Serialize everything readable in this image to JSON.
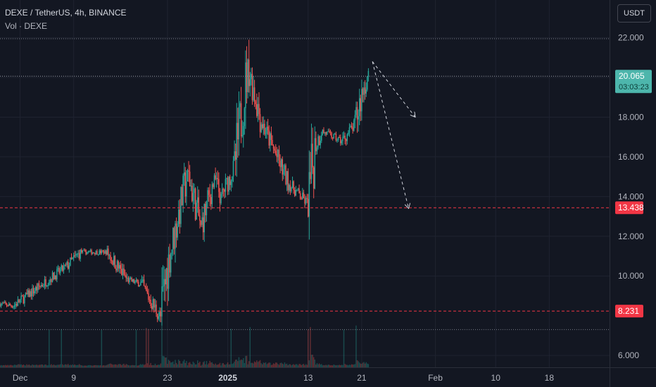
{
  "header": {
    "symbol": "DEXE / TetherUS, 4h, BINANCE",
    "indicator": "Vol · DEXE",
    "currency_button": "USDT"
  },
  "colors": {
    "background": "#131722",
    "up": "#26a69a",
    "down": "#ef5350",
    "price_tag": "#4db6ac",
    "level_line": "#f23645",
    "grid": "#1f2330",
    "arrow": "#d1d4dc"
  },
  "chart_data": {
    "type": "candlestick",
    "y_axis": {
      "ticks": [
        "22.000",
        "20.000",
        "18.000",
        "16.000",
        "14.000",
        "12.000",
        "10.000",
        "6.000"
      ],
      "tick_values": [
        22,
        20,
        18,
        16,
        14,
        12,
        10,
        6
      ],
      "range": [
        5.4,
        23.9
      ]
    },
    "x_axis": {
      "ticks": [
        "Dec",
        "9",
        "23",
        "2025",
        "13",
        "21",
        "Feb",
        "10",
        "18"
      ],
      "bold": [
        "2025"
      ],
      "tick_days": [
        1,
        9,
        23,
        32,
        44,
        52,
        63,
        72,
        80
      ],
      "range_days": [
        -2,
        89
      ]
    },
    "current_price": {
      "value": 20.065,
      "label": "20.065",
      "countdown": "03:03:23"
    },
    "horizontal_levels": [
      {
        "value": 13.438,
        "label": "13.438",
        "style": "dashed"
      },
      {
        "value": 8.231,
        "label": "8.231",
        "style": "dashed"
      },
      {
        "value": 21.95,
        "label": "",
        "style": "dotted"
      },
      {
        "value": 7.3,
        "label": "",
        "style": "dotted"
      }
    ],
    "price_path_days": [
      -2,
      0,
      4,
      8,
      10,
      14,
      17,
      19,
      22,
      23,
      26,
      28,
      30,
      31,
      33,
      35,
      37,
      41,
      44,
      45,
      46,
      49,
      51,
      52,
      53
    ],
    "price_path_values": [
      8.6,
      8.5,
      9.5,
      10.5,
      11.2,
      11.2,
      9.8,
      9.6,
      7.9,
      10.5,
      15.2,
      12.5,
      14.9,
      14.0,
      15.5,
      20.6,
      17.8,
      14.7,
      13.6,
      16.5,
      17.3,
      16.8,
      17.6,
      19.2,
      20.1
    ],
    "wick_extremes": [
      {
        "day": 35.2,
        "value": 21.9
      },
      {
        "day": 53.5,
        "value": 20.9
      }
    ],
    "projection_arrows": [
      {
        "from": [
          53.6,
          20.8
        ],
        "to": [
          60,
          18.0
        ]
      },
      {
        "from": [
          53.6,
          20.8
        ],
        "to": [
          59,
          13.4
        ]
      }
    ]
  }
}
